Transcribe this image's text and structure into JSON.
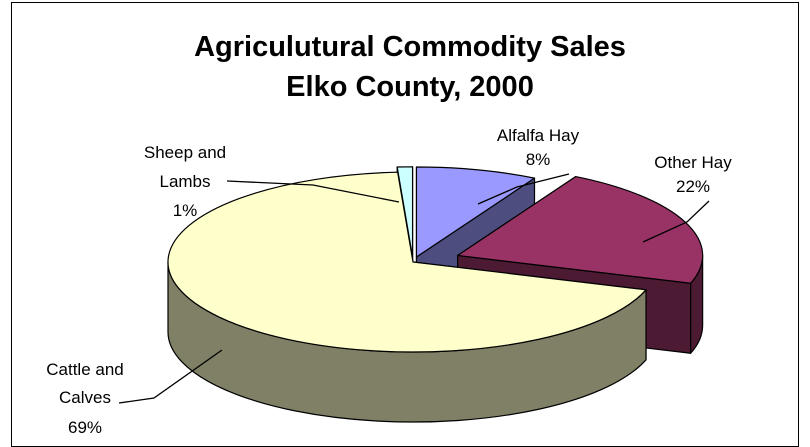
{
  "chart_data": {
    "type": "pie",
    "style": "3d-exploded",
    "title": [
      "Agriculutural Commodity Sales",
      "Elko County, 2000"
    ],
    "slices": [
      {
        "label": [
          "Alfalfa Hay"
        ],
        "pct_label": "8%",
        "value": 8,
        "top_color": "#9999ff",
        "side_color": "#4d4d80"
      },
      {
        "label": [
          "Other Hay"
        ],
        "pct_label": "22%",
        "value": 22,
        "top_color": "#993366",
        "side_color": "#4d1a33"
      },
      {
        "label": [
          "Cattle and",
          "Calves"
        ],
        "pct_label": "69%",
        "value": 69,
        "top_color": "#ffffcc",
        "side_color": "#808066"
      },
      {
        "label": [
          "Sheep and",
          "Lambs"
        ],
        "pct_label": "1%",
        "value": 1,
        "top_color": "#ccffff",
        "side_color": "#668080"
      }
    ]
  }
}
